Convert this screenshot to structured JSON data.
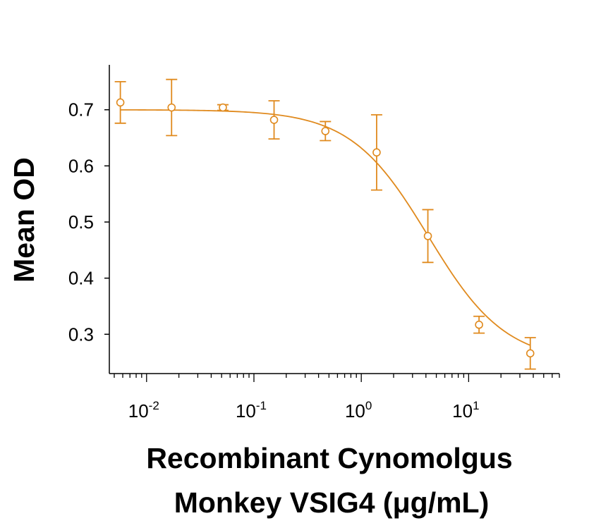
{
  "chart_data": {
    "type": "scatter",
    "xscale": "log",
    "xlim": [
      0.0045,
      70
    ],
    "ylim": [
      0.23,
      0.78
    ],
    "xlabel_lines": [
      "Recombinant Cynomolgus",
      "Monkey VSIG4 (μg/mL)"
    ],
    "ylabel": "Mean OD",
    "x_ticks": [
      {
        "value": 0.01,
        "base": "10",
        "exp": "-2"
      },
      {
        "value": 0.1,
        "base": "10",
        "exp": "-1"
      },
      {
        "value": 1,
        "base": "10",
        "exp": "0"
      },
      {
        "value": 10,
        "base": "10",
        "exp": "1"
      }
    ],
    "y_ticks": [
      {
        "value": 0.3,
        "label": "0.3"
      },
      {
        "value": 0.4,
        "label": "0.4"
      },
      {
        "value": 0.5,
        "label": "0.5"
      },
      {
        "value": 0.6,
        "label": "0.6"
      },
      {
        "value": 0.7,
        "label": "0.7"
      }
    ],
    "series": [
      {
        "color": "#E08A1E",
        "marker": "open-circle",
        "points": [
          {
            "x": 0.0057,
            "y": 0.713,
            "err": 0.037
          },
          {
            "x": 0.0171,
            "y": 0.704,
            "err": 0.05
          },
          {
            "x": 0.0514,
            "y": 0.704,
            "err": 0.005
          },
          {
            "x": 0.154,
            "y": 0.682,
            "err": 0.034
          },
          {
            "x": 0.463,
            "y": 0.662,
            "err": 0.017
          },
          {
            "x": 1.39,
            "y": 0.624,
            "err": 0.067
          },
          {
            "x": 4.17,
            "y": 0.475,
            "err": 0.047
          },
          {
            "x": 12.5,
            "y": 0.317,
            "err": 0.015
          },
          {
            "x": 37.5,
            "y": 0.266,
            "err": 0.028
          }
        ],
        "fit": {
          "model": "4PL",
          "top": 0.7,
          "bottom": 0.25,
          "ec50": 4.2,
          "hill": 1.2
        }
      }
    ],
    "grid": false,
    "legend": "none"
  }
}
